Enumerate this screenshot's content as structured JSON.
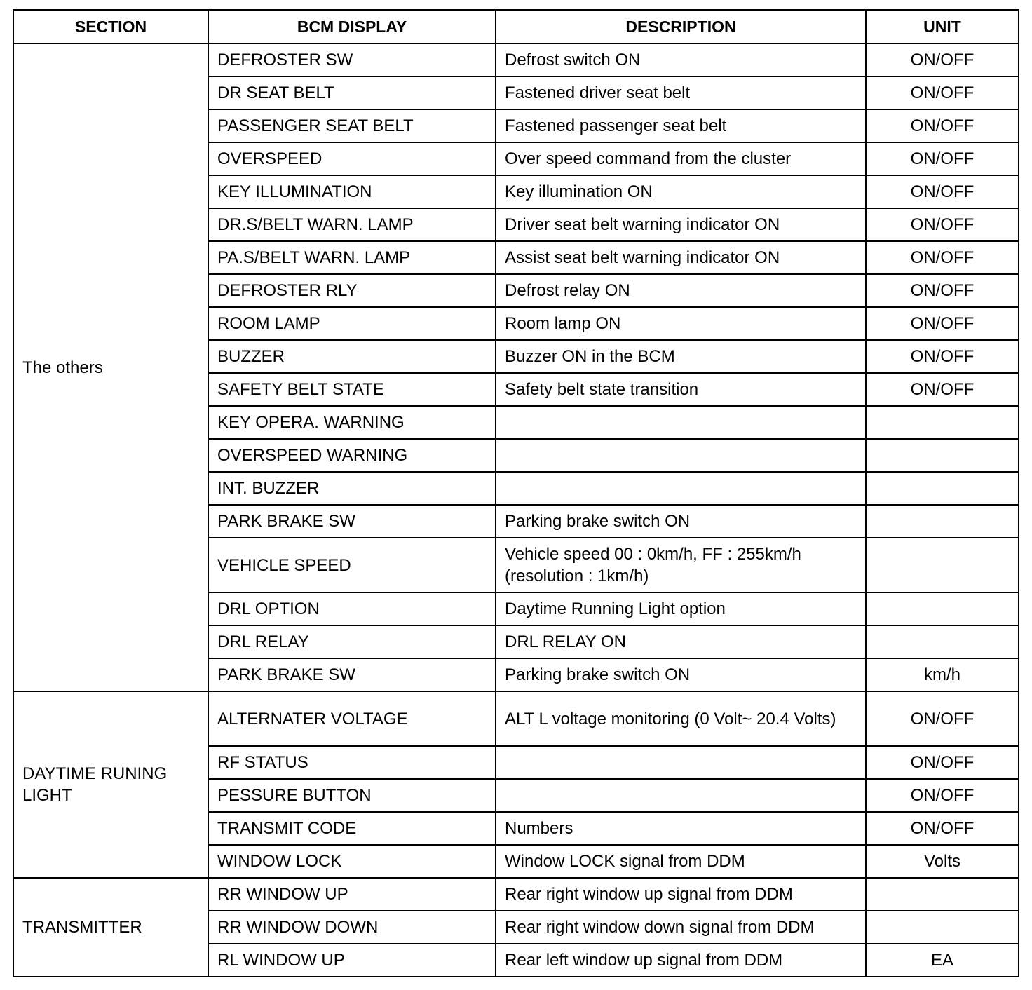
{
  "headers": [
    "SECTION",
    "BCM DISPLAY",
    "DESCRIPTION",
    "UNIT"
  ],
  "sections": [
    {
      "name": "The others",
      "rows": [
        {
          "display": "DEFROSTER SW",
          "description": "Defrost switch ON",
          "unit": "ON/OFF"
        },
        {
          "display": "DR SEAT BELT",
          "description": "Fastened driver seat belt",
          "unit": "ON/OFF"
        },
        {
          "display": "PASSENGER SEAT BELT",
          "description": "Fastened passenger seat belt",
          "unit": "ON/OFF"
        },
        {
          "display": "OVERSPEED",
          "description": "Over speed command from the cluster",
          "unit": "ON/OFF"
        },
        {
          "display": "KEY ILLUMINATION",
          "description": "Key illumination ON",
          "unit": "ON/OFF"
        },
        {
          "display": "DR.S/BELT WARN. LAMP",
          "description": "Driver seat belt warning indicator ON",
          "unit": "ON/OFF"
        },
        {
          "display": "PA.S/BELT WARN. LAMP",
          "description": "Assist seat belt warning indicator ON",
          "unit": "ON/OFF"
        },
        {
          "display": "DEFROSTER RLY",
          "description": "Defrost relay ON",
          "unit": "ON/OFF"
        },
        {
          "display": "ROOM LAMP",
          "description": "Room lamp ON",
          "unit": "ON/OFF"
        },
        {
          "display": "BUZZER",
          "description": "Buzzer ON in the BCM",
          "unit": "ON/OFF"
        },
        {
          "display": "SAFETY BELT STATE",
          "description": "Safety belt state transition",
          "unit": "ON/OFF"
        },
        {
          "display": "KEY OPERA. WARNING",
          "description": "",
          "unit": ""
        },
        {
          "display": "OVERSPEED WARNING",
          "description": "",
          "unit": ""
        },
        {
          "display": "INT. BUZZER",
          "description": "",
          "unit": ""
        },
        {
          "display": "PARK BRAKE SW",
          "description": "Parking brake switch ON",
          "unit": ""
        },
        {
          "display": "VEHICLE SPEED",
          "description": "Vehicle speed 00 : 0km/h, FF : 255km/h (resolution :  1km/h)",
          "unit": "",
          "tall": true
        },
        {
          "display": "DRL OPTION",
          "description": "Daytime Running Light option",
          "unit": ""
        },
        {
          "display": "DRL RELAY",
          "description": "DRL RELAY ON",
          "unit": ""
        },
        {
          "display": "PARK BRAKE SW",
          "description": "Parking brake switch ON",
          "unit": "km/h"
        }
      ]
    },
    {
      "name": "DAYTIME RUNING LIGHT",
      "rows": [
        {
          "display": "ALTERNATER VOLTAGE",
          "description": "ALT L voltage monitoring (0 Volt~ 20.4 Volts)",
          "unit": "ON/OFF",
          "tall": true
        },
        {
          "display": "RF STATUS",
          "description": "",
          "unit": "ON/OFF"
        },
        {
          "display": "PESSURE BUTTON",
          "description": "",
          "unit": "ON/OFF"
        },
        {
          "display": "TRANSMIT CODE",
          "description": "Numbers",
          "unit": "ON/OFF"
        },
        {
          "display": "WINDOW LOCK",
          "description": "Window LOCK signal from DDM",
          "unit": "Volts"
        }
      ]
    },
    {
      "name": "TRANSMITTER",
      "rows": [
        {
          "display": "RR WINDOW UP",
          "description": "Rear right window up signal from DDM",
          "unit": ""
        },
        {
          "display": "RR WINDOW DOWN",
          "description": "Rear right window down signal from DDM",
          "unit": ""
        },
        {
          "display": "RL WINDOW UP",
          "description": "Rear left window up signal from DDM",
          "unit": "EA"
        }
      ]
    }
  ]
}
